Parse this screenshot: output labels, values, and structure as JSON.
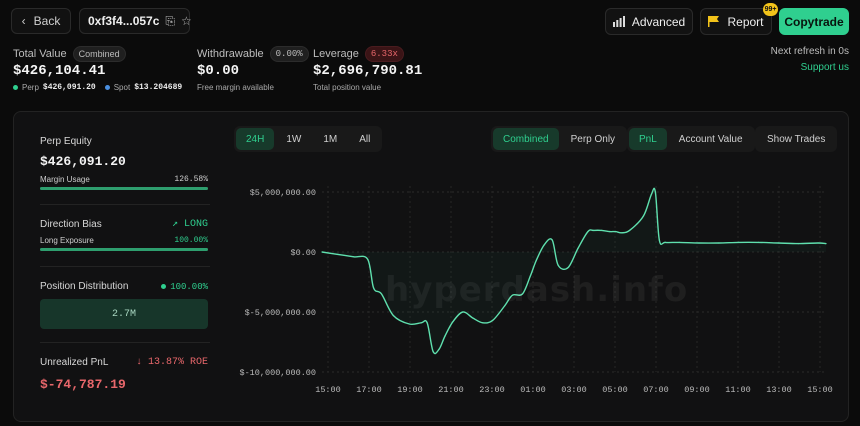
{
  "header": {
    "back_label": "Back",
    "address": "0xf3f4...057c",
    "advanced_label": "Advanced",
    "report_label": "Report",
    "report_badge": "99+",
    "copytrade_label": "Copytrade"
  },
  "stats": {
    "total_value": {
      "label": "Total Value",
      "badge": "Combined",
      "value": "$426,104.41",
      "perp_label": "Perp",
      "perp_value": "$426,091.20",
      "spot_label": "Spot",
      "spot_value": "$13.204689"
    },
    "withdrawable": {
      "label": "Withdrawable",
      "badge": "0.00%",
      "value": "$0.00",
      "sub": "Free margin available"
    },
    "leverage": {
      "label": "Leverage",
      "badge": "6.33x",
      "value": "$2,696,790.81",
      "sub": "Total position value"
    },
    "refresh_text": "Next refresh in 0s",
    "support_text": "Support us"
  },
  "left_panel": {
    "perp_equity_label": "Perp Equity",
    "perp_equity_value": "$426,091.20",
    "margin_usage_label": "Margin Usage",
    "margin_usage_value": "126.58%",
    "margin_usage_fraction": 1.0,
    "direction_bias_label": "Direction Bias",
    "direction_bias_value": "LONG",
    "long_exposure_label": "Long Exposure",
    "long_exposure_value": "100.00%",
    "long_exposure_fraction": 1.0,
    "position_distribution_label": "Position Distribution",
    "position_distribution_value": "100.00%",
    "distribution_box": "2.7M",
    "unrealized_pnl_label": "Unrealized PnL",
    "unrealized_roe": "13.87% ROE",
    "unrealized_pnl_value": "$-74,787.19"
  },
  "timeframes": [
    "24H",
    "1W",
    "1M",
    "All"
  ],
  "timeframe_active": "24H",
  "mode_tabs": [
    "Combined",
    "Perp Only"
  ],
  "mode_active": "Combined",
  "metric_tabs": [
    "PnL",
    "Account Value"
  ],
  "metric_active": "PnL",
  "show_trades_label": "Show Trades",
  "watermark": "hyperdash.info",
  "colors": {
    "accent": "#2fcf8f",
    "negative": "#e8676b",
    "badge": "#f2c31a"
  },
  "chart_data": {
    "type": "line",
    "y_ticks": [
      "$5,000,000.00",
      "$0.00",
      "$-5,000,000.00",
      "$-10,000,000.00"
    ],
    "y_tick_values": [
      5000000,
      0,
      -5000000,
      -10000000
    ],
    "ylim": [
      -10000000,
      5500000
    ],
    "x_tick_labels": [
      "15:00",
      "17:00",
      "19:00",
      "21:00",
      "23:00",
      "01:00",
      "03:00",
      "05:00",
      "07:00",
      "09:00",
      "11:00",
      "13:00",
      "15:00"
    ],
    "x": [
      0,
      0.8,
      1.6,
      2.3,
      2.6,
      3.0,
      3.6,
      4.4,
      5.0,
      5.3,
      5.6,
      5.9,
      6.2,
      6.6,
      7.1,
      7.6,
      8.1,
      8.6,
      9.2,
      9.6,
      10.1,
      10.5,
      10.8,
      11.2,
      11.6,
      11.9,
      12.4,
      12.9,
      13.4,
      13.7,
      14.1,
      14.5,
      14.8,
      15.1,
      15.5,
      16.2,
      16.6,
      16.8,
      17,
      17.3,
      18,
      19,
      20,
      21,
      22,
      23,
      24,
      25,
      25.4
    ],
    "values": [
      0,
      -200000,
      -400000,
      -600000,
      -3000000,
      -3500000,
      -5300000,
      -6000000,
      -5900000,
      -5900000,
      -8300000,
      -8100000,
      -7000000,
      -5800000,
      -5000000,
      -5500000,
      -5900000,
      -5700000,
      -4500000,
      -3600000,
      -3500000,
      -2000000,
      -700000,
      600000,
      1000000,
      -1100000,
      -1300000,
      300000,
      1700000,
      1800000,
      1800000,
      1700000,
      1700000,
      1600000,
      1800000,
      3000000,
      4800000,
      5000000,
      1000000,
      800000,
      800000,
      750000,
      750000,
      800000,
      800000,
      750000,
      700000,
      750000,
      700000
    ]
  }
}
